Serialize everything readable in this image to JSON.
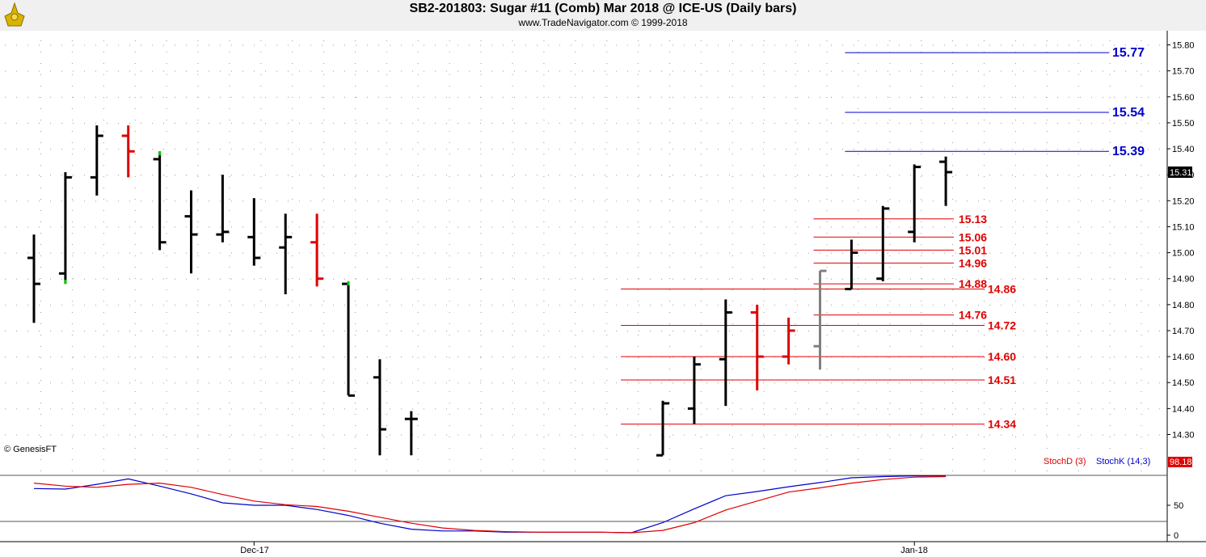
{
  "header": {
    "title": "SB2-201803:  Sugar #11 (Comb) Mar 2018 @ ICE-US  (Daily bars)",
    "subtitle": "www.TradeNavigator.com © 1999-2018"
  },
  "watermark": "© GenesisFT",
  "colors": {
    "up": "#000000",
    "down": "#e00000",
    "neutral": "#808080",
    "blue": "#0000cc",
    "red": "#e00000",
    "tick_green": "#00cc00"
  },
  "chart_data": [
    {
      "type": "ohlc",
      "ylim": [
        14.22,
        15.85
      ],
      "y_ticks": [
        "15.80",
        "15.70",
        "15.60",
        "15.50",
        "15.40",
        "15.30",
        "15.20",
        "15.10",
        "15.00",
        "14.90",
        "14.80",
        "14.70",
        "14.60",
        "14.50",
        "14.40",
        "14.30"
      ],
      "x_labels": [
        {
          "text": "Dec-17",
          "bar": 7
        },
        {
          "text": "Jan-18",
          "bar": 28
        }
      ],
      "bars": [
        {
          "slot": 0,
          "o": 14.98,
          "h": 15.07,
          "l": 14.73,
          "c": 14.88,
          "color": "up"
        },
        {
          "slot": 1,
          "o": 14.92,
          "h": 15.31,
          "l": 14.88,
          "c": 15.29,
          "color": "up",
          "mark": "low"
        },
        {
          "slot": 2,
          "o": 15.29,
          "h": 15.49,
          "l": 15.22,
          "c": 15.45,
          "color": "up"
        },
        {
          "slot": 3,
          "o": 15.45,
          "h": 15.49,
          "l": 15.29,
          "c": 15.39,
          "color": "down"
        },
        {
          "slot": 4,
          "o": 15.36,
          "h": 15.39,
          "l": 15.01,
          "c": 15.04,
          "color": "up",
          "mark": "high"
        },
        {
          "slot": 5,
          "o": 15.14,
          "h": 15.24,
          "l": 14.92,
          "c": 15.07,
          "color": "up"
        },
        {
          "slot": 6,
          "o": 15.07,
          "h": 15.3,
          "l": 15.04,
          "c": 15.08,
          "color": "up"
        },
        {
          "slot": 7,
          "o": 15.06,
          "h": 15.21,
          "l": 14.95,
          "c": 14.98,
          "color": "up"
        },
        {
          "slot": 8,
          "o": 15.02,
          "h": 15.15,
          "l": 14.84,
          "c": 15.06,
          "color": "up"
        },
        {
          "slot": 9,
          "o": 15.04,
          "h": 15.15,
          "l": 14.87,
          "c": 14.9,
          "color": "down"
        },
        {
          "slot": 10,
          "o": 14.88,
          "h": 14.89,
          "l": 14.45,
          "c": 14.45,
          "color": "up",
          "mark": "high"
        },
        {
          "slot": 11,
          "o": 14.52,
          "h": 14.59,
          "l": 14.22,
          "c": 14.32,
          "color": "up"
        },
        {
          "slot": 12,
          "o": 14.36,
          "h": 14.39,
          "l": 14.22,
          "c": 14.36,
          "color": "up"
        },
        {
          "slot": 20,
          "o": 14.22,
          "h": 14.43,
          "l": 14.22,
          "c": 14.42,
          "color": "up"
        },
        {
          "slot": 21,
          "o": 14.4,
          "h": 14.6,
          "l": 14.34,
          "c": 14.57,
          "color": "up"
        },
        {
          "slot": 22,
          "o": 14.59,
          "h": 14.82,
          "l": 14.41,
          "c": 14.77,
          "color": "up"
        },
        {
          "slot": 23,
          "o": 14.77,
          "h": 14.8,
          "l": 14.47,
          "c": 14.6,
          "color": "down"
        },
        {
          "slot": 24,
          "o": 14.6,
          "h": 14.75,
          "l": 14.57,
          "c": 14.7,
          "color": "down"
        },
        {
          "slot": 25,
          "o": 14.64,
          "h": 14.93,
          "l": 14.55,
          "c": 14.93,
          "color": "neutral"
        },
        {
          "slot": 26,
          "o": 14.86,
          "h": 15.05,
          "l": 14.86,
          "c": 15.0,
          "color": "up"
        },
        {
          "slot": 27,
          "o": 14.9,
          "h": 15.18,
          "l": 14.89,
          "c": 15.17,
          "color": "up"
        },
        {
          "slot": 28,
          "o": 15.08,
          "h": 15.34,
          "l": 15.04,
          "c": 15.33,
          "color": "up"
        },
        {
          "slot": 29,
          "o": 15.35,
          "h": 15.37,
          "l": 15.18,
          "c": 15.31,
          "color": "up"
        }
      ],
      "last_price": "15.31",
      "levels": [
        {
          "value": 15.77,
          "label": "15.77",
          "color": "blue",
          "start_slot": 26,
          "label_pos": "far"
        },
        {
          "value": 15.54,
          "label": "15.54",
          "color": "blue",
          "start_slot": 26,
          "label_pos": "far"
        },
        {
          "value": 15.39,
          "label": "15.39",
          "color": "blue",
          "start_slot": 26,
          "label_pos": "far"
        },
        {
          "value": 15.13,
          "label": "15.13",
          "color": "red",
          "start_slot": 25,
          "label_pos": "near"
        },
        {
          "value": 15.06,
          "label": "15.06",
          "color": "red",
          "start_slot": 25,
          "label_pos": "near"
        },
        {
          "value": 15.01,
          "label": "15.01",
          "color": "red",
          "start_slot": 25,
          "label_pos": "near"
        },
        {
          "value": 14.96,
          "label": "14.96",
          "color": "red",
          "start_slot": 25,
          "label_pos": "near"
        },
        {
          "value": 14.88,
          "label": "14.88",
          "color": "red",
          "start_slot": 25,
          "label_pos": "near"
        },
        {
          "value": 14.86,
          "label": "14.86",
          "color": "red",
          "start_slot": 19,
          "label_pos": "mid"
        },
        {
          "value": 14.76,
          "label": "14.76",
          "color": "red",
          "start_slot": 25,
          "label_pos": "near"
        },
        {
          "value": 14.72,
          "label": "14.72",
          "color": "red",
          "start_slot": 19,
          "label_pos": "mid"
        },
        {
          "value": 14.6,
          "label": "14.60",
          "color": "red",
          "start_slot": 19,
          "label_pos": "mid"
        },
        {
          "value": 14.51,
          "label": "14.51",
          "color": "red",
          "start_slot": 19,
          "label_pos": "mid"
        },
        {
          "value": 14.34,
          "label": "14.34",
          "color": "red",
          "start_slot": 19,
          "label_pos": "mid"
        }
      ]
    },
    {
      "type": "line",
      "ylim": [
        -5,
        102
      ],
      "y_ticks": [
        "50",
        "0"
      ],
      "legend": [
        "StochD (3)",
        "StochK (14,3)"
      ],
      "last_value": "98.18",
      "series": [
        {
          "name": "StochK (14,3)",
          "color": "blue",
          "values": [
            [
              0,
              78
            ],
            [
              1,
              77
            ],
            [
              2,
              85
            ],
            [
              3,
              94
            ],
            [
              4,
              82
            ],
            [
              5,
              69
            ],
            [
              6,
              54
            ],
            [
              7,
              50
            ],
            [
              8,
              50
            ],
            [
              9,
              43
            ],
            [
              10,
              33
            ],
            [
              11,
              20
            ],
            [
              12,
              10
            ],
            [
              13,
              7
            ],
            [
              14,
              7
            ],
            [
              15,
              5
            ],
            [
              16,
              5
            ],
            [
              17,
              5
            ],
            [
              18,
              5
            ],
            [
              19,
              4
            ],
            [
              20,
              21
            ],
            [
              21,
              44
            ],
            [
              22,
              66
            ],
            [
              23,
              73
            ],
            [
              24,
              81
            ],
            [
              25,
              88
            ],
            [
              26,
              96
            ],
            [
              27,
              98
            ],
            [
              28,
              99
            ],
            [
              29,
              99
            ]
          ]
        },
        {
          "name": "StochD (3)",
          "color": "red",
          "values": [
            [
              0,
              87
            ],
            [
              1,
              82
            ],
            [
              2,
              80
            ],
            [
              3,
              85
            ],
            [
              4,
              87
            ],
            [
              5,
              80
            ],
            [
              6,
              68
            ],
            [
              7,
              57
            ],
            [
              8,
              51
            ],
            [
              9,
              48
            ],
            [
              10,
              40
            ],
            [
              11,
              30
            ],
            [
              12,
              20
            ],
            [
              13,
              12
            ],
            [
              14,
              8
            ],
            [
              15,
              6
            ],
            [
              16,
              5
            ],
            [
              17,
              5
            ],
            [
              18,
              5
            ],
            [
              19,
              4
            ],
            [
              20,
              8
            ],
            [
              21,
              21
            ],
            [
              22,
              42
            ],
            [
              23,
              57
            ],
            [
              24,
              72
            ],
            [
              25,
              79
            ],
            [
              26,
              87
            ],
            [
              27,
              93
            ],
            [
              28,
              97
            ],
            [
              29,
              98
            ]
          ]
        }
      ]
    }
  ]
}
